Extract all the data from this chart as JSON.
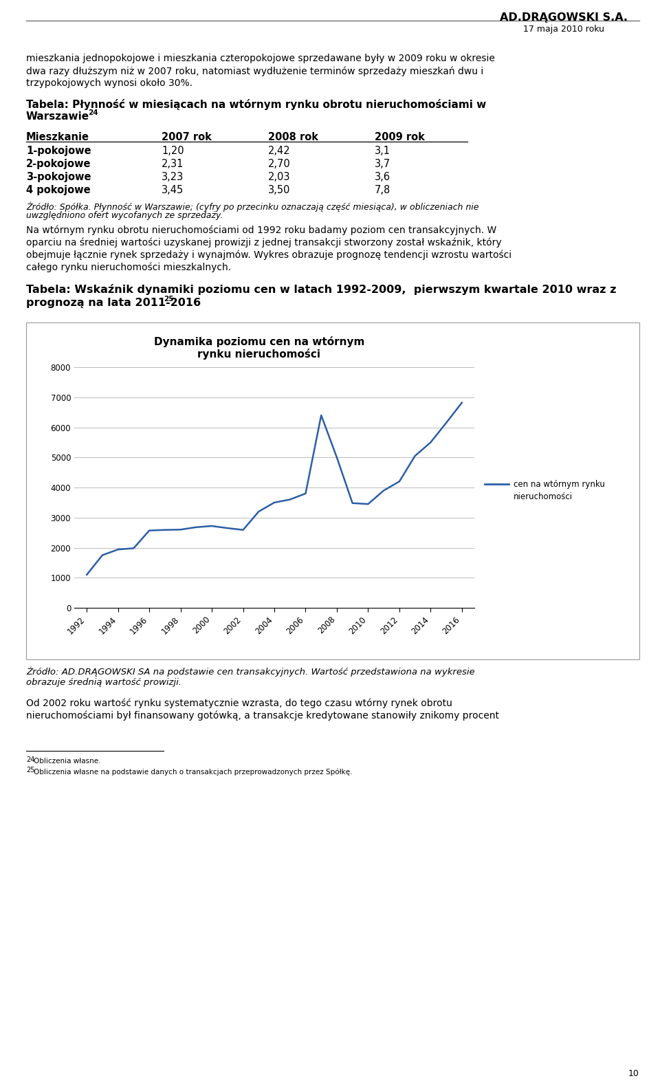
{
  "header_company": "AD.DRĄGOWSKI S.A.",
  "header_date": "17 maja 2010 roku",
  "para1_lines": [
    "mieszkania jednopokojowe i mieszkania czteropokojowe sprzedawane były w 2009 roku w okresie",
    "dwa razy dłuższym niż w 2007 roku, natomiast wydłużenie terminów sprzedaży mieszkań dwu i",
    "trzypokojowych wynosi około 30%."
  ],
  "table1_title_line1": "Tabela: Płynność w miesiącach na wtórnym rynku obrotu nieruchomościami w",
  "table1_title_line2": "Warszawie",
  "table1_superscript": "24",
  "table_headers": [
    "Mieszkanie",
    "2007 rok",
    "2008 rok",
    "2009 rok"
  ],
  "table_rows": [
    [
      "1-pokojowe",
      "1,20",
      "2,42",
      "3,1"
    ],
    [
      "2-pokojowe",
      "2,31",
      "2,70",
      "3,7"
    ],
    [
      "3-pokojowe",
      "3,23",
      "2,03",
      "3,6"
    ],
    [
      "4 pokojowe",
      "3,45",
      "3,50",
      "7,8"
    ]
  ],
  "table1_source_line1": "Źródło: Spółka. Płynność w Warszawie; (cyfry po przecinku oznaczają część miesiąca), w obliczeniach nie",
  "table1_source_line2": "uwzględniono ofert wycofanych ze sprzedaży.",
  "para2_lines": [
    "Na wtórnym rynku obrotu nieruchomościami od 1992 roku badamy poziom cen transakcyjnych. W",
    "oparciu na średniej wartości uzyskanej prowizji z jednej transakcji stworzony został wskaźnik, który",
    "obejmuje łącznie rynek sprzedaży i wynajmów. Wykres obrazuje prognozę tendencji wzrostu wartości",
    "całego rynku nieruchomości mieszkalnych."
  ],
  "table2_title_line1": "Tabela: Wskaźnik dynamiki poziomu cen w latach 1992-2009,  pierwszym kwartale 2010 wraz z",
  "table2_title_line2": "prognozą na lata 2011-2016",
  "table2_superscript": "25",
  "chart_title_line1": "Dynamika poziomu cen na wtórnym",
  "chart_title_line2": "rynku nieruchomości",
  "chart_x": [
    1992,
    1993,
    1994,
    1995,
    1996,
    1997,
    1998,
    1999,
    2000,
    2001,
    2002,
    2003,
    2004,
    2005,
    2006,
    2007,
    2008,
    2009,
    2010,
    2011,
    2012,
    2013,
    2014,
    2015,
    2016
  ],
  "chart_y": [
    1100,
    1750,
    1940,
    1980,
    2570,
    2590,
    2600,
    2680,
    2720,
    2650,
    2590,
    3200,
    3500,
    3600,
    3800,
    6400,
    5000,
    3480,
    3450,
    3900,
    4200,
    5050,
    5500,
    6150,
    6820
  ],
  "chart_legend": "cen na wtórnym rynku\nnieruchomości",
  "chart_line_color": "#2B5EA7",
  "chart_ylim": [
    0,
    8000
  ],
  "chart_yticks": [
    0,
    1000,
    2000,
    3000,
    4000,
    5000,
    6000,
    7000,
    8000
  ],
  "chart_xticks": [
    1992,
    1994,
    1996,
    1998,
    2000,
    2002,
    2004,
    2006,
    2008,
    2010,
    2012,
    2014,
    2016
  ],
  "chart_source_line1": "Źródło: AD.DRĄGOWSKI SA na podstawie cen transakcyjnych. Wartość przedstawiona na wykresie",
  "chart_source_line2": "obrazuje średnią wartość prowizji.",
  "para3_lines": [
    "Od 2002 roku wartość rynku systematycznie wzrasta, do tego czasu wtórny rynek obrotu",
    "nieruchomościami był finansowany gotówką, a transakcje kredytowane stanowiły znikomy procent"
  ],
  "footnote_line": "",
  "footnote24_sup": "24",
  "footnote24_text": "Obliczenia własne.",
  "footnote25_sup": "25",
  "footnote25_text": "Obliczenia własne na podstawie danych o transakcjach przeprowadzonych przez Spółkę.",
  "page_number": "10"
}
